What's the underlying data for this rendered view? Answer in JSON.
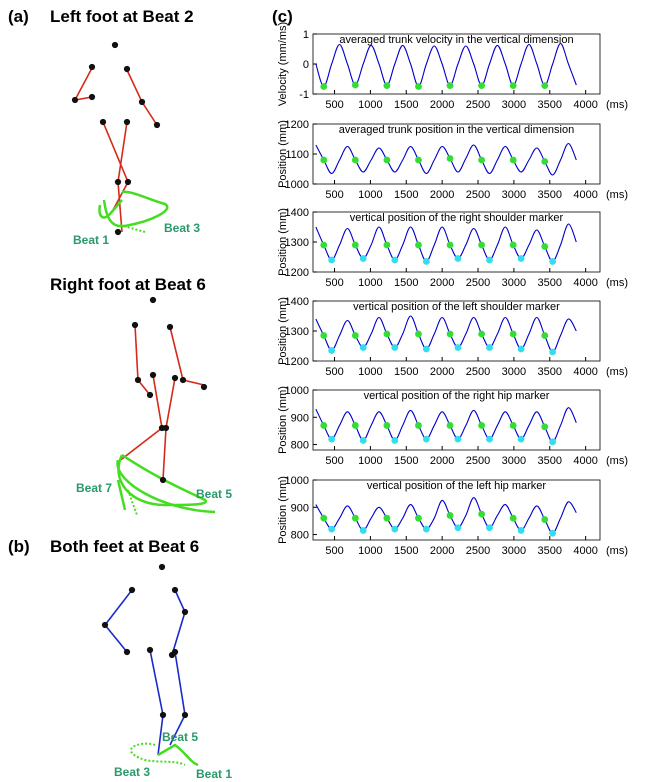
{
  "figure": {
    "panel_a": {
      "label": "(a)",
      "title": "Left foot at Beat 2",
      "beats": [
        "Beat 1",
        "Beat 3"
      ],
      "title2": "Right foot at Beat 6",
      "beats2": [
        "Beat 7",
        "Beat 5"
      ]
    },
    "panel_b": {
      "label": "(b)",
      "title": "Both feet at Beat 6",
      "beats": [
        "Beat 5",
        "Beat 3",
        "Beat 1"
      ]
    },
    "panel_c": {
      "label": "(c)"
    }
  },
  "chart_data": [
    {
      "type": "line",
      "title": "averaged trunk velocity in the vertical dimension",
      "ylabel": "Velocity (mm/ms)",
      "xlabel": "(ms)",
      "xlim": [
        200,
        4200
      ],
      "xticks": [
        500,
        1000,
        1500,
        2000,
        2500,
        3000,
        3500,
        4000
      ],
      "ylim": [
        -1,
        1
      ],
      "yticks": [
        -1,
        0,
        1
      ],
      "series": [
        {
          "color": "#0000cc",
          "x": [
            240,
            350,
            460,
            570,
            680,
            790,
            900,
            1010,
            1120,
            1230,
            1340,
            1450,
            1560,
            1670,
            1780,
            1890,
            2000,
            2110,
            2220,
            2330,
            2440,
            2550,
            2660,
            2770,
            2880,
            2990,
            3100,
            3210,
            3320,
            3430,
            3540,
            3650,
            3760,
            3870
          ],
          "values": [
            0,
            -0.75,
            0,
            0.65,
            0,
            -0.7,
            0,
            0.62,
            0,
            -0.72,
            0,
            0.62,
            0,
            -0.75,
            0,
            0.6,
            0,
            -0.72,
            0,
            0.6,
            0,
            -0.72,
            0,
            0.62,
            0,
            -0.72,
            0,
            0.65,
            0,
            -0.72,
            0,
            0.68,
            0,
            -0.7
          ]
        }
      ],
      "points": [
        {
          "color": "#33dd33",
          "x": [
            350,
            790,
            1230,
            1670,
            2110,
            2550,
            2990,
            3430
          ],
          "values": [
            -0.75,
            -0.7,
            -0.72,
            -0.75,
            -0.72,
            -0.72,
            -0.72,
            -0.72
          ]
        }
      ]
    },
    {
      "type": "line",
      "title": "averaged trunk position in the vertical dimension",
      "ylabel": "Position (mm)",
      "xlabel": "(ms)",
      "xlim": [
        200,
        4200
      ],
      "xticks": [
        500,
        1000,
        1500,
        2000,
        2500,
        3000,
        3500,
        4000
      ],
      "ylim": [
        1000,
        1200
      ],
      "yticks": [
        1000,
        1100,
        1200
      ],
      "series": [
        {
          "color": "#0000cc",
          "x": [
            240,
            350,
            460,
            570,
            680,
            790,
            900,
            1010,
            1120,
            1230,
            1340,
            1450,
            1560,
            1670,
            1780,
            1890,
            2000,
            2110,
            2220,
            2330,
            2440,
            2550,
            2660,
            2770,
            2880,
            2990,
            3100,
            3210,
            3320,
            3430,
            3540,
            3650,
            3760,
            3870
          ],
          "values": [
            1130,
            1080,
            1035,
            1080,
            1125,
            1080,
            1040,
            1080,
            1120,
            1080,
            1040,
            1080,
            1125,
            1080,
            1035,
            1080,
            1125,
            1085,
            1040,
            1085,
            1130,
            1080,
            1035,
            1080,
            1125,
            1080,
            1040,
            1080,
            1120,
            1075,
            1030,
            1080,
            1135,
            1080
          ]
        }
      ],
      "points": [
        {
          "color": "#33dd33",
          "x": [
            350,
            790,
            1230,
            1670,
            2110,
            2550,
            2990,
            3430
          ],
          "values": [
            1080,
            1080,
            1080,
            1080,
            1085,
            1080,
            1080,
            1075
          ]
        }
      ]
    },
    {
      "type": "line",
      "title": "vertical position of the right shoulder marker",
      "ylabel": "Position (mm)",
      "xlabel": "(ms)",
      "xlim": [
        200,
        4200
      ],
      "xticks": [
        500,
        1000,
        1500,
        2000,
        2500,
        3000,
        3500,
        4000
      ],
      "ylim": [
        1200,
        1400
      ],
      "yticks": [
        1200,
        1300,
        1400
      ],
      "series": [
        {
          "color": "#0000cc",
          "x": [
            240,
            350,
            460,
            570,
            680,
            790,
            900,
            1010,
            1120,
            1230,
            1340,
            1450,
            1560,
            1670,
            1780,
            1890,
            2000,
            2110,
            2220,
            2330,
            2440,
            2550,
            2660,
            2770,
            2880,
            2990,
            3100,
            3210,
            3320,
            3430,
            3540,
            3650,
            3760,
            3870
          ],
          "values": [
            1350,
            1290,
            1240,
            1290,
            1345,
            1290,
            1245,
            1290,
            1350,
            1290,
            1240,
            1290,
            1350,
            1290,
            1235,
            1290,
            1350,
            1290,
            1245,
            1290,
            1345,
            1290,
            1240,
            1290,
            1350,
            1290,
            1245,
            1290,
            1340,
            1285,
            1235,
            1290,
            1360,
            1300
          ]
        }
      ],
      "points": [
        {
          "color": "#33dd33",
          "x": [
            350,
            790,
            1230,
            1670,
            2110,
            2550,
            2990,
            3430
          ],
          "values": [
            1290,
            1290,
            1290,
            1290,
            1290,
            1290,
            1290,
            1285
          ]
        },
        {
          "color": "#33ddee",
          "x": [
            460,
            900,
            1340,
            1780,
            2220,
            2660,
            3100,
            3540
          ],
          "values": [
            1240,
            1245,
            1240,
            1235,
            1245,
            1240,
            1245,
            1235
          ]
        }
      ]
    },
    {
      "type": "line",
      "title": "vertical position of the left shoulder marker",
      "ylabel": "Position (mm)",
      "xlabel": "(ms)",
      "xlim": [
        200,
        4200
      ],
      "xticks": [
        500,
        1000,
        1500,
        2000,
        2500,
        3000,
        3500,
        4000
      ],
      "ylim": [
        1200,
        1400
      ],
      "yticks": [
        1200,
        1300,
        1400
      ],
      "series": [
        {
          "color": "#0000cc",
          "x": [
            240,
            350,
            460,
            570,
            680,
            790,
            900,
            1010,
            1120,
            1230,
            1340,
            1450,
            1560,
            1670,
            1780,
            1890,
            2000,
            2110,
            2220,
            2330,
            2440,
            2550,
            2660,
            2770,
            2880,
            2990,
            3100,
            3210,
            3320,
            3430,
            3540,
            3650,
            3760,
            3870
          ],
          "values": [
            1340,
            1285,
            1235,
            1285,
            1335,
            1285,
            1245,
            1290,
            1345,
            1290,
            1245,
            1290,
            1350,
            1290,
            1240,
            1290,
            1345,
            1290,
            1245,
            1290,
            1345,
            1290,
            1245,
            1290,
            1345,
            1290,
            1240,
            1290,
            1345,
            1285,
            1230,
            1285,
            1340,
            1300
          ]
        }
      ],
      "points": [
        {
          "color": "#33dd33",
          "x": [
            350,
            790,
            1230,
            1670,
            2110,
            2550,
            2990,
            3430
          ],
          "values": [
            1285,
            1285,
            1290,
            1290,
            1290,
            1290,
            1290,
            1285
          ]
        },
        {
          "color": "#33ddee",
          "x": [
            460,
            900,
            1340,
            1780,
            2220,
            2660,
            3100,
            3540
          ],
          "values": [
            1235,
            1245,
            1245,
            1240,
            1245,
            1245,
            1240,
            1230
          ]
        }
      ]
    },
    {
      "type": "line",
      "title": "vertical position of the right hip marker",
      "ylabel": "Position (mm)",
      "xlabel": "(ms)",
      "xlim": [
        200,
        4200
      ],
      "xticks": [
        500,
        1000,
        1500,
        2000,
        2500,
        3000,
        3500,
        4000
      ],
      "ylim": [
        780,
        1000
      ],
      "yticks": [
        800,
        900,
        1000
      ],
      "series": [
        {
          "color": "#0000cc",
          "x": [
            240,
            350,
            460,
            570,
            680,
            790,
            900,
            1010,
            1120,
            1230,
            1340,
            1450,
            1560,
            1670,
            1780,
            1890,
            2000,
            2110,
            2220,
            2330,
            2440,
            2550,
            2660,
            2770,
            2880,
            2990,
            3100,
            3210,
            3320,
            3430,
            3540,
            3650,
            3760,
            3870
          ],
          "values": [
            930,
            870,
            820,
            870,
            920,
            870,
            815,
            870,
            920,
            870,
            815,
            870,
            925,
            870,
            820,
            870,
            920,
            870,
            820,
            870,
            925,
            870,
            820,
            870,
            920,
            870,
            820,
            870,
            920,
            865,
            810,
            870,
            935,
            880
          ]
        }
      ],
      "points": [
        {
          "color": "#33dd33",
          "x": [
            350,
            790,
            1230,
            1670,
            2110,
            2550,
            2990,
            3430
          ],
          "values": [
            870,
            870,
            870,
            870,
            870,
            870,
            870,
            865
          ]
        },
        {
          "color": "#33ddee",
          "x": [
            460,
            900,
            1340,
            1780,
            2220,
            2660,
            3100,
            3540
          ],
          "values": [
            820,
            815,
            815,
            820,
            820,
            820,
            820,
            810
          ]
        }
      ]
    },
    {
      "type": "line",
      "title": "vertical position of the left hip marker",
      "ylabel": "Position (mm)",
      "xlabel": "(ms)",
      "xlim": [
        200,
        4200
      ],
      "xticks": [
        500,
        1000,
        1500,
        2000,
        2500,
        3000,
        3500,
        4000
      ],
      "ylim": [
        780,
        1000
      ],
      "yticks": [
        800,
        900,
        1000
      ],
      "series": [
        {
          "color": "#0000cc",
          "x": [
            240,
            350,
            460,
            570,
            680,
            790,
            900,
            1010,
            1120,
            1230,
            1340,
            1450,
            1560,
            1670,
            1780,
            1890,
            2000,
            2110,
            2220,
            2330,
            2440,
            2550,
            2660,
            2770,
            2880,
            2990,
            3100,
            3210,
            3320,
            3430,
            3540,
            3650,
            3760,
            3870
          ],
          "values": [
            910,
            860,
            820,
            860,
            905,
            860,
            815,
            860,
            900,
            860,
            820,
            860,
            910,
            860,
            820,
            860,
            925,
            870,
            825,
            870,
            935,
            875,
            825,
            870,
            910,
            860,
            815,
            860,
            905,
            855,
            805,
            860,
            920,
            880
          ]
        }
      ],
      "points": [
        {
          "color": "#33dd33",
          "x": [
            350,
            790,
            1230,
            1670,
            2110,
            2550,
            2990,
            3430
          ],
          "values": [
            860,
            860,
            860,
            860,
            870,
            875,
            860,
            855
          ]
        },
        {
          "color": "#33ddee",
          "x": [
            460,
            900,
            1340,
            1780,
            2220,
            2660,
            3100,
            3540
          ],
          "values": [
            820,
            815,
            820,
            820,
            825,
            825,
            815,
            805
          ]
        }
      ]
    }
  ]
}
